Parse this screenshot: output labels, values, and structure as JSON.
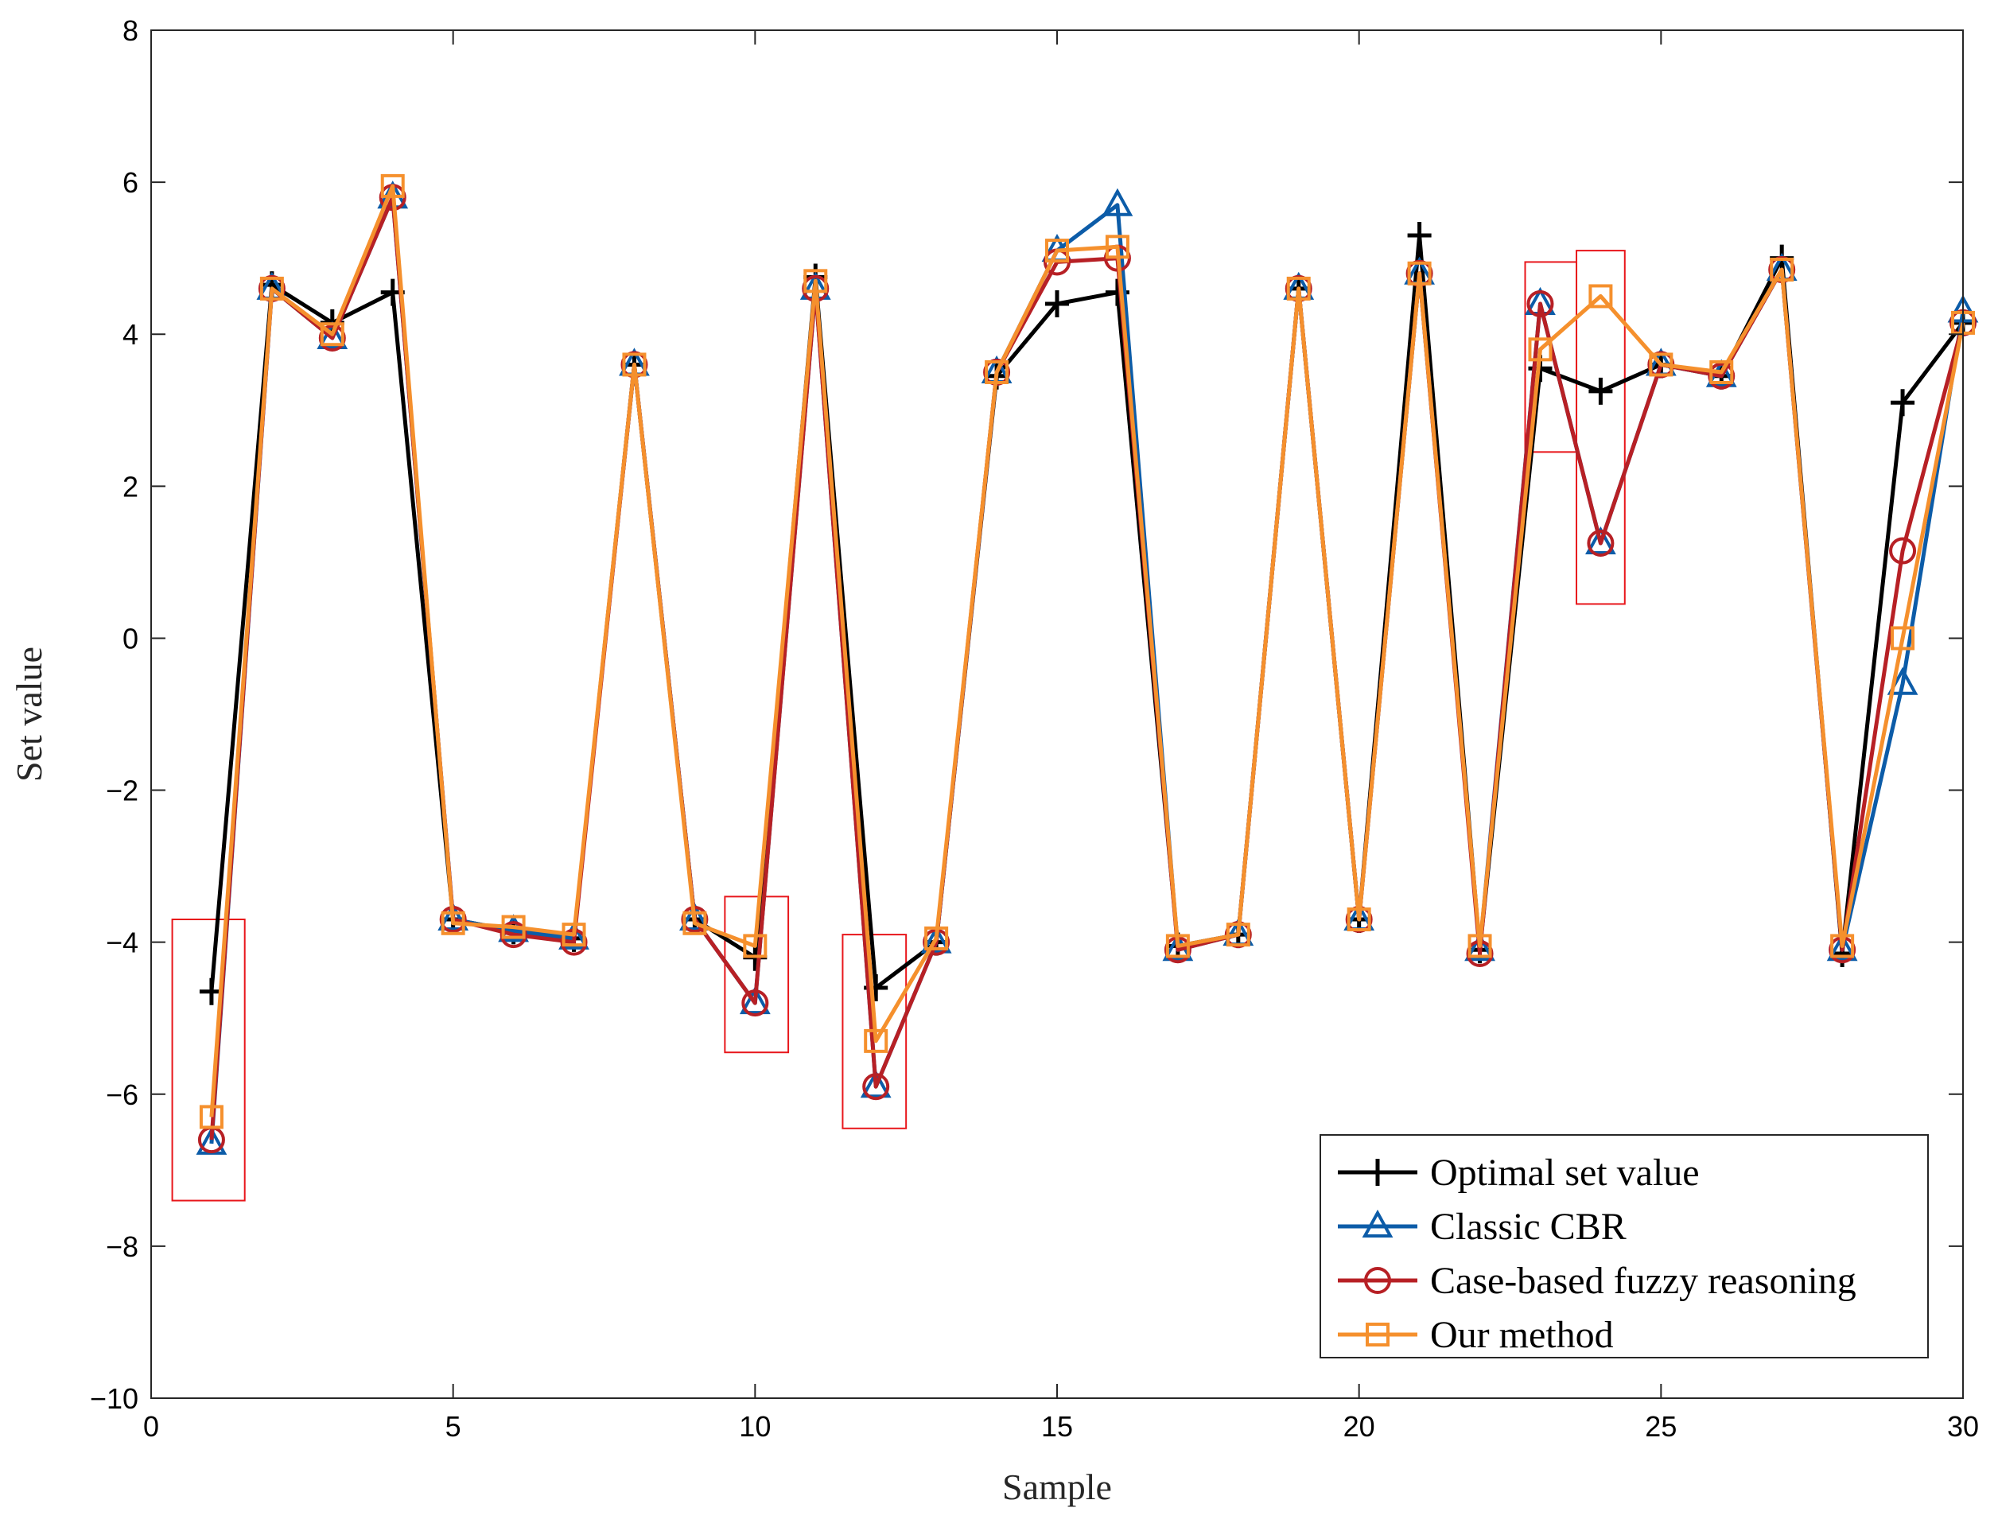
{
  "chart_data": {
    "type": "line",
    "title": "",
    "xlabel": "Sample",
    "ylabel": "Set value",
    "xlim": [
      0,
      30
    ],
    "ylim": [
      -10,
      8
    ],
    "xticks": [
      0,
      5,
      10,
      15,
      20,
      25,
      30
    ],
    "xtick_labels": [
      "0",
      "5",
      "10",
      "15",
      "20",
      "25",
      "30"
    ],
    "yticks": [
      -10,
      -8,
      -6,
      -4,
      -2,
      0,
      2,
      4,
      6,
      8
    ],
    "ytick_labels": [
      "−10",
      "−8",
      "−6",
      "−4",
      "−2",
      "0",
      "2",
      "4",
      "6",
      "8"
    ],
    "grid": false,
    "legend_position": "bottom-right",
    "x": [
      1,
      2,
      3,
      4,
      5,
      6,
      7,
      8,
      9,
      10,
      11,
      12,
      13,
      14,
      15,
      16,
      17,
      18,
      19,
      20,
      21,
      22,
      23,
      24,
      25,
      26,
      27,
      28,
      29,
      30
    ],
    "series": [
      {
        "name": "Optimal set value",
        "color": "#000000",
        "marker": "plus",
        "values": [
          -4.65,
          4.65,
          4.15,
          4.55,
          -3.7,
          -3.85,
          -3.95,
          3.6,
          -3.7,
          -4.2,
          4.75,
          -4.6,
          -4.0,
          3.45,
          4.4,
          4.55,
          -4.05,
          -3.9,
          4.6,
          -3.7,
          5.3,
          -4.1,
          3.55,
          3.25,
          3.6,
          3.45,
          5.0,
          -4.15,
          3.1,
          4.15
        ]
      },
      {
        "name": "Classic CBR",
        "color": "#0c5ca8",
        "marker": "triangle",
        "values": [
          -6.65,
          4.6,
          3.95,
          5.8,
          -3.7,
          -3.85,
          -3.95,
          3.6,
          -3.7,
          -4.8,
          4.6,
          -5.9,
          -4.0,
          3.5,
          5.1,
          5.7,
          -4.1,
          -3.9,
          4.6,
          -3.7,
          4.8,
          -4.1,
          4.4,
          1.25,
          3.6,
          3.45,
          4.85,
          -4.1,
          -0.6,
          4.3
        ]
      },
      {
        "name": "Case-based fuzzy reasoning",
        "color": "#b72025",
        "marker": "circle",
        "values": [
          -6.6,
          4.6,
          3.95,
          5.8,
          -3.7,
          -3.9,
          -4.0,
          3.6,
          -3.7,
          -4.8,
          4.6,
          -5.9,
          -4.0,
          3.5,
          4.95,
          5.0,
          -4.1,
          -3.9,
          4.6,
          -3.7,
          4.8,
          -4.15,
          4.4,
          1.25,
          3.6,
          3.45,
          4.85,
          -4.1,
          1.15,
          4.15
        ]
      },
      {
        "name": "Our method",
        "color": "#f5902d",
        "marker": "square",
        "values": [
          -6.3,
          4.6,
          4.0,
          5.95,
          -3.75,
          -3.8,
          -3.9,
          3.6,
          -3.75,
          -4.05,
          4.7,
          -5.3,
          -3.95,
          3.5,
          5.1,
          5.15,
          -4.05,
          -3.9,
          4.6,
          -3.7,
          4.8,
          -4.05,
          3.8,
          4.5,
          3.6,
          3.5,
          4.85,
          -4.05,
          0.0,
          4.15
        ]
      }
    ],
    "highlight_boxes": [
      {
        "x_range": [
          0.35,
          1.55
        ],
        "y_range": [
          -7.4,
          -3.7
        ]
      },
      {
        "x_range": [
          9.5,
          10.55
        ],
        "y_range": [
          -5.45,
          -3.4
        ]
      },
      {
        "x_range": [
          11.45,
          12.5
        ],
        "y_range": [
          -6.45,
          -3.9
        ]
      },
      {
        "x_range": [
          22.75,
          23.6
        ],
        "y_range": [
          2.45,
          4.95
        ]
      },
      {
        "x_range": [
          23.6,
          24.4
        ],
        "y_range": [
          0.45,
          5.1
        ]
      }
    ],
    "highlight_color": "#e8161b"
  }
}
